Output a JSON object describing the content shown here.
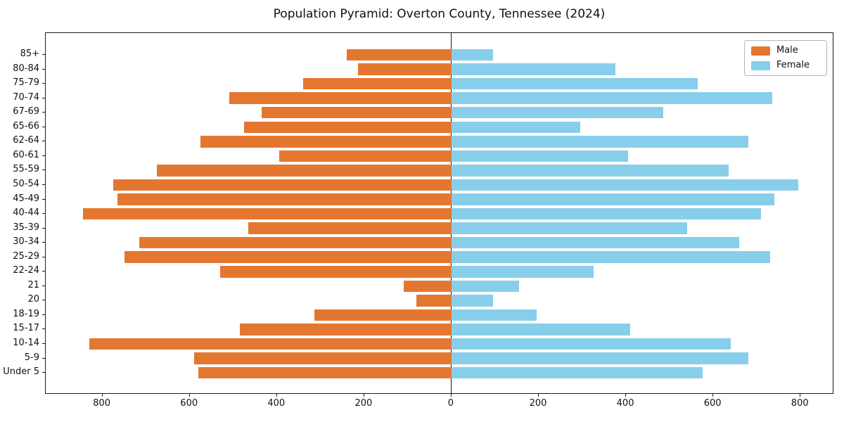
{
  "title": "Population Pyramid: Overton County, Tennessee (2024)",
  "legend": {
    "male_label": "Male",
    "female_label": "Female"
  },
  "colors": {
    "male": "#e4772f",
    "female": "#87ceeb",
    "axis": "#1a1a1a",
    "background": "#ffffff"
  },
  "chart_data": {
    "type": "bar",
    "orientation": "horizontal-pyramid",
    "title": "Population Pyramid: Overton County, Tennessee (2024)",
    "categories": [
      "85+",
      "80-84",
      "75-79",
      "70-74",
      "67-69",
      "65-66",
      "62-64",
      "60-61",
      "55-59",
      "50-54",
      "45-49",
      "40-44",
      "35-39",
      "30-34",
      "25-29",
      "22-24",
      "21",
      "20",
      "18-19",
      "15-17",
      "10-14",
      "5-9",
      "Under 5"
    ],
    "series": [
      {
        "name": "Male",
        "side": "left",
        "color": "#e4772f",
        "values": [
          240,
          215,
          340,
          510,
          435,
          475,
          575,
          395,
          675,
          775,
          765,
          845,
          465,
          715,
          750,
          530,
          110,
          80,
          315,
          485,
          830,
          590,
          580
        ]
      },
      {
        "name": "Female",
        "side": "right",
        "color": "#87ceeb",
        "values": [
          95,
          375,
          565,
          735,
          485,
          295,
          680,
          405,
          635,
          795,
          740,
          710,
          540,
          660,
          730,
          325,
          155,
          95,
          195,
          410,
          640,
          680,
          575
        ]
      }
    ],
    "xlim": [
      -930,
      877
    ],
    "xticks": {
      "values": [
        -800,
        -600,
        -400,
        -200,
        0,
        200,
        400,
        600,
        800
      ],
      "labels": [
        "800",
        "600",
        "400",
        "200",
        "0",
        "200",
        "400",
        "600",
        "800"
      ]
    },
    "ylabel": "",
    "xlabel": "",
    "grid": false,
    "zero_line": true,
    "legend_position": "upper right"
  }
}
